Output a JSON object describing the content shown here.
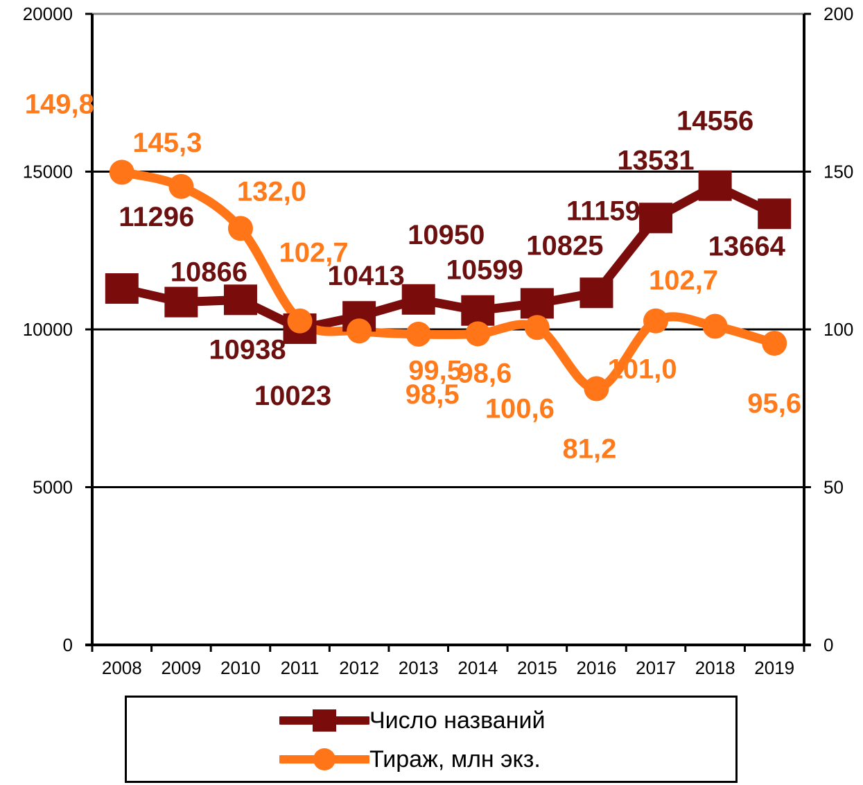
{
  "chart_data": {
    "type": "line",
    "categories": [
      "2008",
      "2009",
      "2010",
      "2011",
      "2012",
      "2013",
      "2014",
      "2015",
      "2016",
      "2017",
      "2018",
      "2019"
    ],
    "y_left": {
      "min": 0,
      "max": 20000,
      "ticks": [
        "0",
        "5000",
        "10000",
        "15000",
        "20000"
      ]
    },
    "y_right": {
      "min": 0,
      "max": 200,
      "ticks": [
        "0",
        "50",
        "100",
        "150",
        "200"
      ]
    },
    "grid": true,
    "legend_position": "bottom",
    "series": [
      {
        "name": "Число названий",
        "axis": "left",
        "color": "#7b0c0c",
        "marker": "square",
        "values": [
          11296,
          10866,
          10938,
          10023,
          10413,
          10950,
          10599,
          10825,
          11159,
          13531,
          14556,
          13664
        ],
        "labels": [
          "11296",
          "10866",
          "10938",
          "10023",
          "10413",
          "10950",
          "10599",
          "10825",
          "11159",
          "13531",
          "14556",
          "13664"
        ]
      },
      {
        "name": "Тираж, млн экз.",
        "axis": "right",
        "color": "#ff7518",
        "marker": "circle",
        "smooth": true,
        "values": [
          149.8,
          145.3,
          132.0,
          102.7,
          99.5,
          98.5,
          98.6,
          100.6,
          81.2,
          102.7,
          101.0,
          95.6
        ],
        "labels": [
          "149,8",
          "145,3",
          "132,0",
          "102,7",
          "99,5",
          "98,5",
          "98,6",
          "100,6",
          "81,2",
          "102,7",
          "101,0",
          "95,6"
        ]
      }
    ]
  }
}
